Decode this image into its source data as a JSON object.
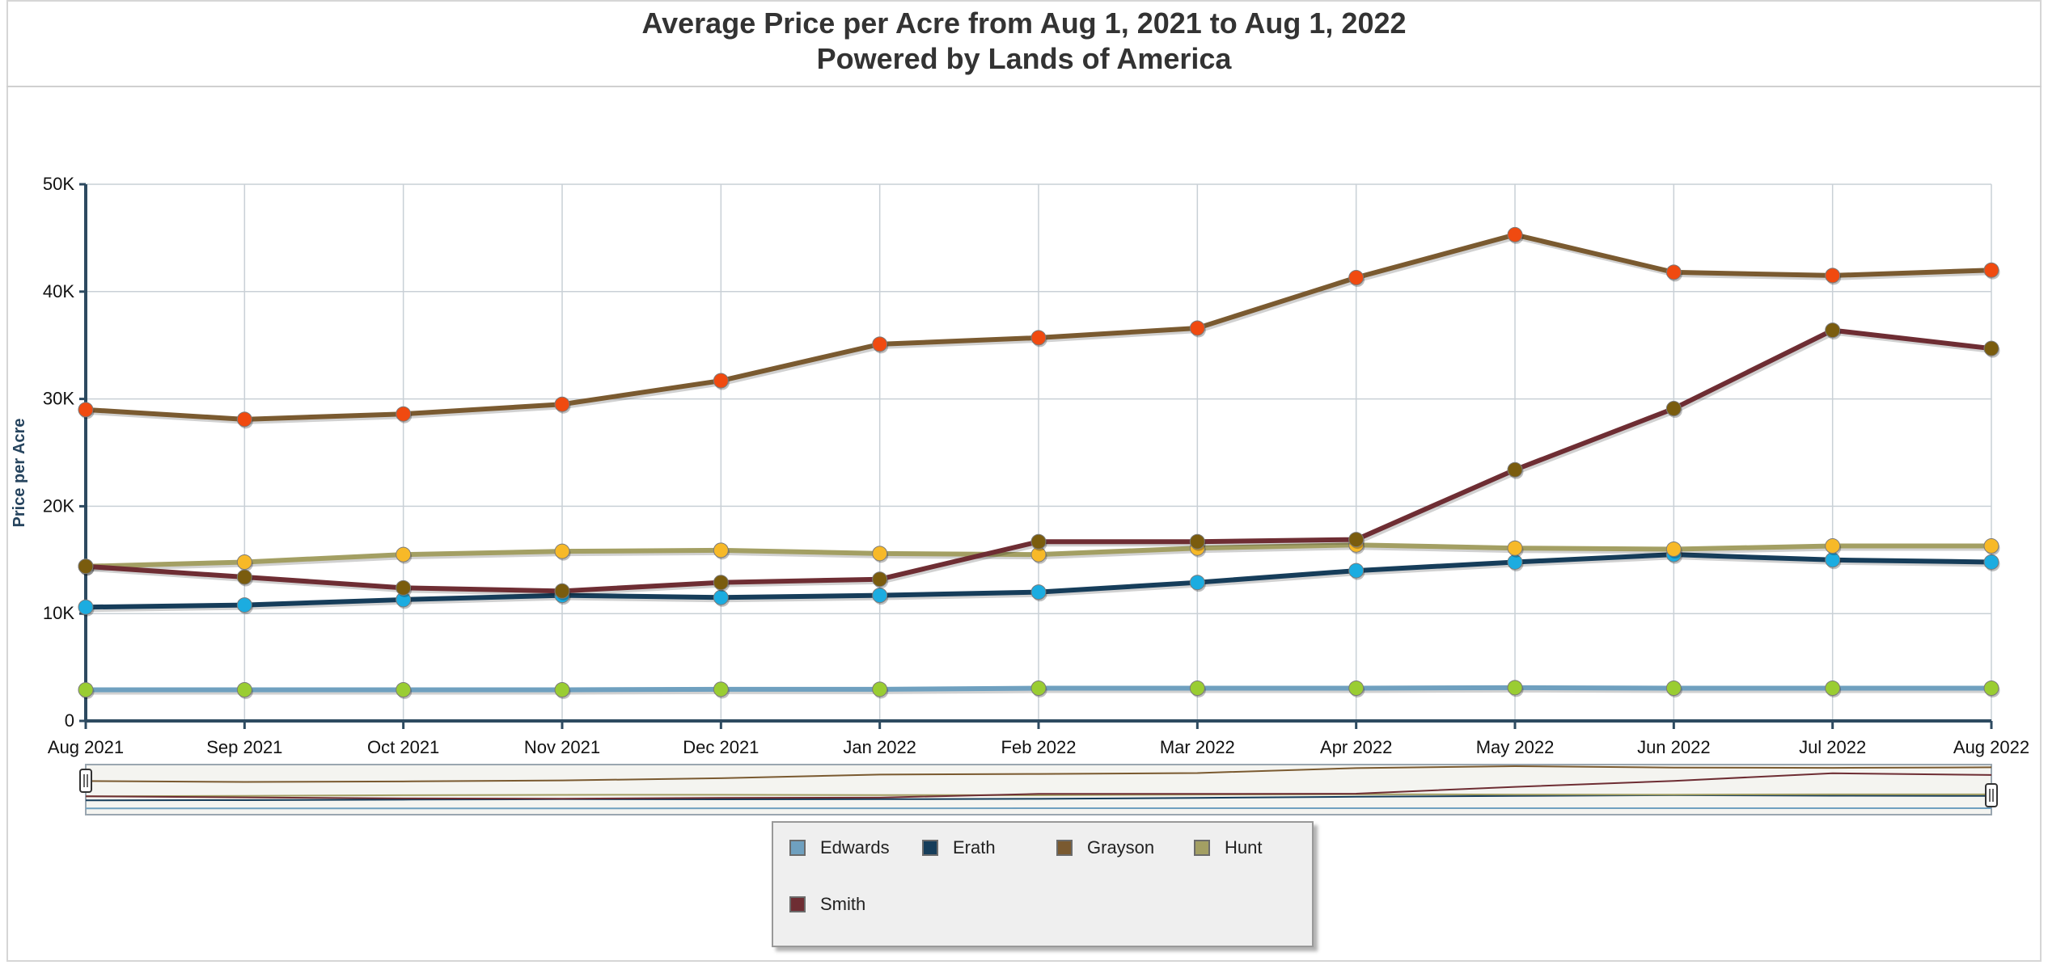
{
  "header": {
    "title_line1": "Average Price per Acre from Aug 1, 2021 to Aug 1, 2022",
    "title_line2": "Powered by Lands of America"
  },
  "chart_data": {
    "type": "line",
    "title": "Average Price per Acre from Aug 1, 2021 to Aug 1, 2022",
    "subtitle": "Powered by Lands of America",
    "xlabel": "",
    "ylabel": "Price per Acre",
    "categories": [
      "Aug 2021",
      "Sep 2021",
      "Oct 2021",
      "Nov 2021",
      "Dec 2021",
      "Jan 2022",
      "Feb 2022",
      "Mar 2022",
      "Apr 2022",
      "May 2022",
      "Jun 2022",
      "Jul 2022",
      "Aug 2022"
    ],
    "ylim": [
      0,
      50000
    ],
    "yticks": [
      0,
      10000,
      20000,
      30000,
      40000,
      50000
    ],
    "ytick_labels": [
      "0",
      "10K",
      "20K",
      "30K",
      "40K",
      "50K"
    ],
    "grid": true,
    "legend_position": "bottom-center",
    "series": [
      {
        "name": "Edwards",
        "line_color": "#6fa0bf",
        "marker_color": "#9acd32",
        "values": [
          2900,
          2900,
          2900,
          2900,
          2950,
          2950,
          3050,
          3050,
          3050,
          3100,
          3050,
          3050,
          3050
        ]
      },
      {
        "name": "Erath",
        "line_color": "#163d5a",
        "marker_color": "#1cace0",
        "values": [
          10600,
          10800,
          11300,
          11700,
          11500,
          11700,
          12000,
          12900,
          14000,
          14800,
          15500,
          15000,
          14800
        ]
      },
      {
        "name": "Grayson",
        "line_color": "#7a5a30",
        "marker_color": "#f04a10",
        "values": [
          29000,
          28100,
          28600,
          29500,
          31700,
          35100,
          35700,
          36600,
          41300,
          45300,
          41800,
          41500,
          42000
        ]
      },
      {
        "name": "Hunt",
        "line_color": "#a39f63",
        "marker_color": "#f7b928",
        "values": [
          14400,
          14800,
          15500,
          15800,
          15900,
          15600,
          15500,
          16100,
          16400,
          16100,
          16000,
          16300,
          16300
        ]
      },
      {
        "name": "Smith",
        "line_color": "#6e2d33",
        "marker_color": "#7a5c0e",
        "values": [
          14400,
          13400,
          12400,
          12100,
          12900,
          13200,
          16700,
          16700,
          16900,
          23400,
          29100,
          36400,
          34700
        ]
      }
    ]
  },
  "legend": {
    "items": [
      {
        "label": "Edwards",
        "color": "#6fa0bf"
      },
      {
        "label": "Erath",
        "color": "#163d5a"
      },
      {
        "label": "Grayson",
        "color": "#7a5a30"
      },
      {
        "label": "Hunt",
        "color": "#a39f63"
      },
      {
        "label": "Smith",
        "color": "#6e2d33"
      }
    ]
  }
}
